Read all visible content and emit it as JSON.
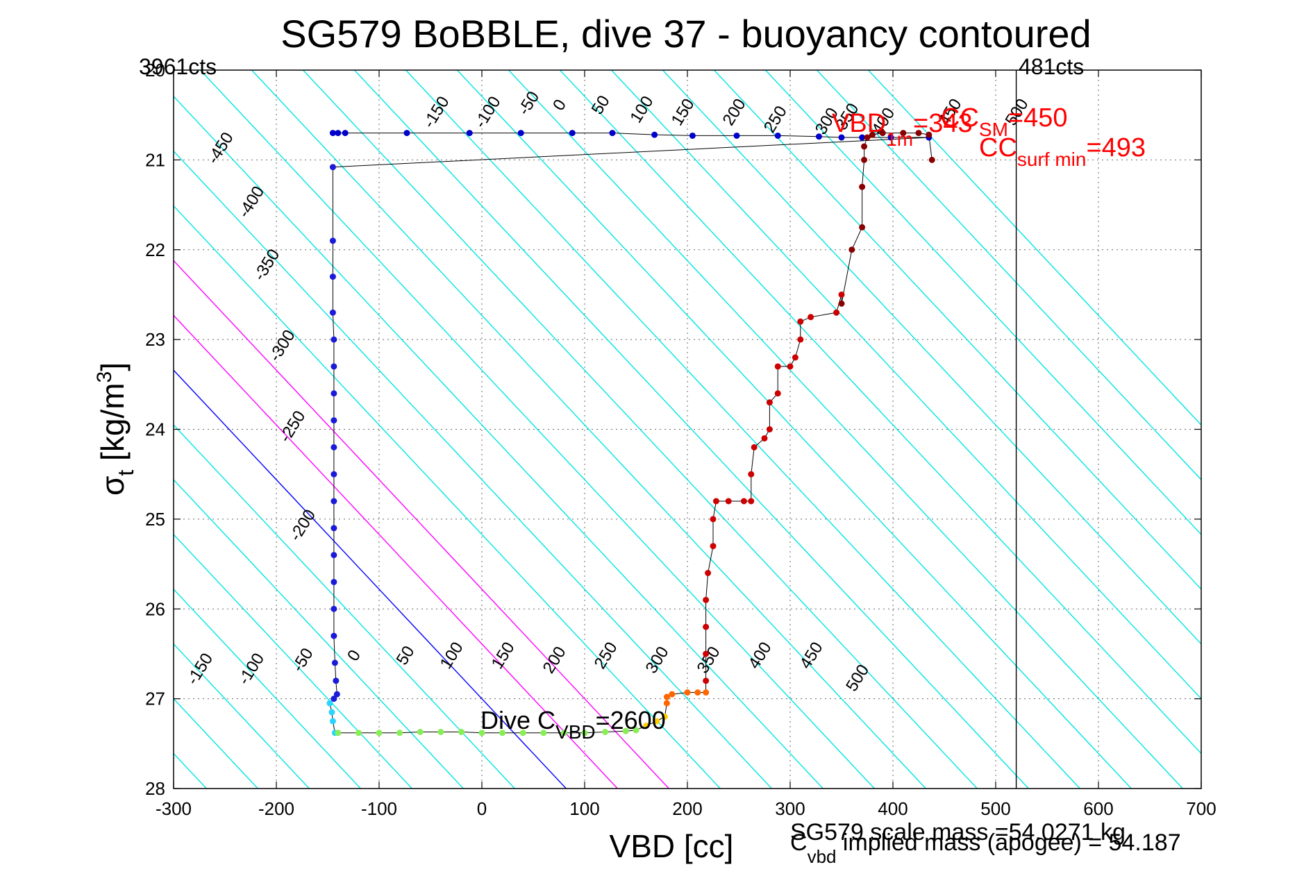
{
  "chart_data": {
    "type": "scatter",
    "title": "SG579 BoBBLE, dive 37 - buoyancy contoured",
    "xlabel": "VBD [cc]",
    "ylabel_main": "σ",
    "ylabel_sub": "t",
    "ylabel_unit_pre": " [kg/m",
    "ylabel_unit_sup": "3",
    "ylabel_unit_post": "]",
    "xlim": [
      -300,
      700
    ],
    "ylim": [
      20,
      28
    ],
    "y_reversed": true,
    "grid": true,
    "xticks": [
      -300,
      -200,
      -100,
      0,
      100,
      200,
      300,
      400,
      500,
      600,
      700
    ],
    "yticks": [
      20,
      21,
      22,
      23,
      24,
      25,
      26,
      27,
      28
    ],
    "ytick_labels": [
      "20",
      "21",
      "22",
      "23",
      "24",
      "25",
      "26",
      "27",
      "28"
    ],
    "counts_left": "3961cts",
    "counts_right": "481cts",
    "vbd_vertical_line": 520,
    "texts": {
      "dive_c_main": "Dive C",
      "dive_c_sub": "VBD",
      "dive_c_val": "=2600",
      "vbd1m_main": "VBD",
      "vbd1m_sub": "1m",
      "vbd1m_val": "=343",
      "ccsm_main": "CC",
      "ccsm_sub": "SM",
      "ccsm_val": "=450",
      "ccsurf_main": "CC",
      "ccsurf_sub": "surf min",
      "ccsurf_val": "=493",
      "scale_mass": "SG579 scale mass =54.0271 kg",
      "cvbd_main": "C",
      "cvbd_sub": "vbd",
      "cvbd_rest": " implied mass (apogee) = 54.187"
    },
    "contours": {
      "slope_per_sigma": 82,
      "ref_sigma": 27,
      "offsets": [
        -500,
        -450,
        -400,
        -350,
        -300,
        -250,
        -200,
        -150,
        -100,
        -50,
        0,
        50,
        100,
        150,
        200,
        250,
        300,
        350,
        400,
        450,
        500,
        550,
        600,
        650,
        700,
        750,
        800,
        850,
        900,
        950
      ],
      "highlight": {
        "0": "#0000ff",
        "50": "#ff00ff",
        "100": "#ff00ff"
      },
      "color": "#00e5e5",
      "labels_upper": {
        "sigma": 20.55,
        "values": [
          "-450",
          "-400",
          "-350",
          "-300",
          "-250",
          "-200",
          "-150",
          "-100",
          "-50",
          "0",
          "50",
          "100",
          "150",
          "200",
          "250",
          "300",
          "350",
          "400",
          "450",
          "500"
        ],
        "points": [
          [
            -250,
            20.9
          ],
          [
            -220,
            21.5
          ],
          [
            -205,
            22.2
          ],
          [
            -190,
            23.1
          ],
          [
            -180,
            24.0
          ],
          [
            -170,
            25.1
          ],
          [
            -40,
            20.5
          ],
          [
            10,
            20.5
          ],
          [
            50,
            20.4
          ],
          [
            80,
            20.42
          ],
          [
            120,
            20.42
          ],
          [
            160,
            20.47
          ],
          [
            200,
            20.5
          ],
          [
            250,
            20.5
          ],
          [
            290,
            20.58
          ],
          [
            340,
            20.6
          ],
          [
            360,
            20.55
          ],
          [
            395,
            20.6
          ],
          [
            460,
            20.5
          ],
          [
            525,
            20.5
          ]
        ],
        "order_values": [
          "-450",
          "-400",
          "-350",
          "-300",
          "-250",
          "-200",
          "-150",
          "-100",
          "-50",
          "0",
          "50",
          "100",
          "150",
          "200",
          "250",
          "300",
          "350",
          "400",
          "450",
          "500"
        ]
      },
      "labels_lower": {
        "values": [
          "-150",
          "-100",
          "-50",
          "0",
          "50",
          "100",
          "150",
          "200",
          "250",
          "300",
          "350",
          "400",
          "450",
          "500"
        ],
        "points": [
          [
            -270,
            26.7
          ],
          [
            -220,
            26.7
          ],
          [
            -170,
            26.6
          ],
          [
            -120,
            26.55
          ],
          [
            -70,
            26.55
          ],
          [
            -25,
            26.55
          ],
          [
            25,
            26.55
          ],
          [
            75,
            26.6
          ],
          [
            125,
            26.55
          ],
          [
            175,
            26.6
          ],
          [
            225,
            26.6
          ],
          [
            275,
            26.55
          ],
          [
            325,
            26.55
          ],
          [
            370,
            26.8
          ]
        ]
      }
    },
    "series": [
      {
        "segment": "dive-upper",
        "color": "#0000cc",
        "points": [
          [
            -145,
            20.7
          ],
          [
            -140,
            20.7
          ],
          [
            -133,
            20.7
          ],
          [
            -73,
            20.7
          ],
          [
            -12,
            20.7
          ],
          [
            38,
            20.7
          ],
          [
            88,
            20.7
          ],
          [
            127,
            20.7
          ],
          [
            168,
            20.72
          ],
          [
            205,
            20.73
          ],
          [
            248,
            20.73
          ],
          [
            288,
            20.73
          ],
          [
            328,
            20.74
          ],
          [
            350,
            20.75
          ],
          [
            370,
            20.75
          ],
          [
            398,
            20.75
          ],
          [
            435,
            20.75
          ]
        ]
      },
      {
        "segment": "dive-descent",
        "color": "#1a1ad9",
        "points": [
          [
            -145,
            21.08
          ],
          [
            -145,
            21.9
          ],
          [
            -145,
            22.3
          ],
          [
            -145,
            22.7
          ],
          [
            -144,
            23.0
          ],
          [
            -144,
            23.3
          ],
          [
            -144,
            23.6
          ],
          [
            -144,
            23.9
          ],
          [
            -144,
            24.2
          ],
          [
            -144,
            24.5
          ],
          [
            -144,
            24.8
          ],
          [
            -144,
            25.1
          ],
          [
            -144,
            25.4
          ],
          [
            -144,
            25.7
          ],
          [
            -144,
            26.0
          ],
          [
            -144,
            26.3
          ],
          [
            -143,
            26.6
          ],
          [
            -142,
            26.8
          ],
          [
            -141,
            26.95
          ],
          [
            -144,
            27.0
          ]
        ]
      },
      {
        "segment": "apogee",
        "color": "#2ad4ff",
        "points": [
          [
            -148,
            27.05
          ],
          [
            -146,
            27.15
          ],
          [
            -145,
            27.25
          ],
          [
            -143,
            27.38
          ]
        ]
      },
      {
        "segment": "bottom-transit",
        "color": "#88ee55",
        "points": [
          [
            -140,
            27.38
          ],
          [
            -120,
            27.38
          ],
          [
            -100,
            27.38
          ],
          [
            -80,
            27.38
          ],
          [
            -60,
            27.37
          ],
          [
            -40,
            27.37
          ],
          [
            -20,
            27.37
          ],
          [
            0,
            27.38
          ],
          [
            20,
            27.38
          ],
          [
            40,
            27.38
          ],
          [
            60,
            27.38
          ],
          [
            80,
            27.38
          ],
          [
            100,
            27.38
          ],
          [
            120,
            27.37
          ],
          [
            140,
            27.36
          ],
          [
            150,
            27.35
          ]
        ]
      },
      {
        "segment": "climb-start",
        "color": "#ffcc00",
        "points": [
          [
            160,
            27.3
          ],
          [
            170,
            27.25
          ],
          [
            178,
            27.2
          ]
        ]
      },
      {
        "segment": "climb-lower",
        "color": "#ff6600",
        "points": [
          [
            180,
            27.05
          ],
          [
            180,
            26.98
          ],
          [
            185,
            26.95
          ],
          [
            200,
            26.93
          ],
          [
            210,
            26.93
          ],
          [
            218,
            26.93
          ]
        ]
      },
      {
        "segment": "climb-steps",
        "color": "#cc0000",
        "points": [
          [
            218,
            26.8
          ],
          [
            218,
            26.5
          ],
          [
            218,
            26.2
          ],
          [
            218,
            25.9
          ],
          [
            220,
            25.6
          ],
          [
            225,
            25.3
          ],
          [
            225,
            25.0
          ],
          [
            228,
            24.8
          ],
          [
            240,
            24.8
          ],
          [
            255,
            24.8
          ],
          [
            262,
            24.8
          ],
          [
            262,
            24.5
          ],
          [
            265,
            24.2
          ],
          [
            275,
            24.1
          ],
          [
            280,
            24.0
          ],
          [
            280,
            23.7
          ],
          [
            288,
            23.6
          ],
          [
            288,
            23.3
          ],
          [
            300,
            23.3
          ],
          [
            305,
            23.2
          ],
          [
            310,
            23.0
          ],
          [
            310,
            22.8
          ],
          [
            320,
            22.75
          ],
          [
            345,
            22.7
          ],
          [
            350,
            22.5
          ]
        ]
      },
      {
        "segment": "climb-upper",
        "color": "#880000",
        "points": [
          [
            350,
            22.6
          ],
          [
            360,
            22.0
          ],
          [
            370,
            21.75
          ],
          [
            370,
            21.3
          ],
          [
            372,
            21.0
          ],
          [
            372,
            20.85
          ],
          [
            375,
            20.75
          ],
          [
            380,
            20.72
          ],
          [
            390,
            20.7
          ],
          [
            410,
            20.7
          ],
          [
            425,
            20.7
          ],
          [
            435,
            20.72
          ],
          [
            438,
            21.0
          ]
        ]
      }
    ]
  }
}
